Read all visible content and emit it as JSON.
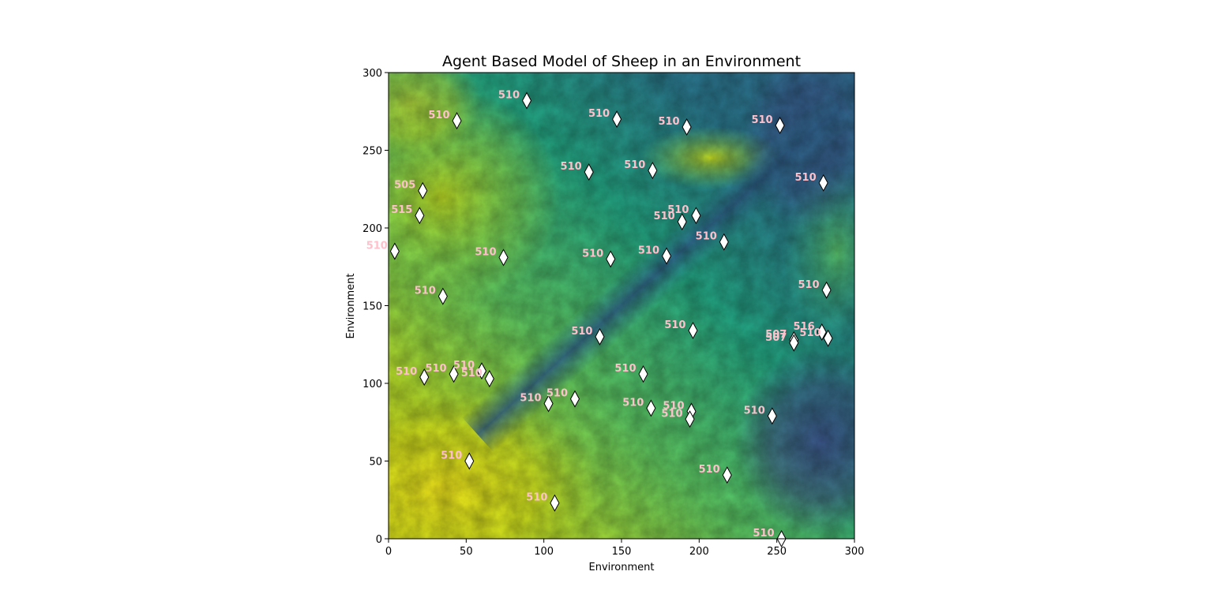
{
  "chart_data": {
    "type": "scatter",
    "title": "Agent Based Model of Sheep in an Environment",
    "xlabel": "Environment",
    "ylabel": "Environment",
    "xlim": [
      0,
      300
    ],
    "ylim": [
      0,
      300
    ],
    "xticks": [
      0,
      50,
      100,
      150,
      200,
      250,
      300
    ],
    "yticks": [
      0,
      50,
      100,
      150,
      200,
      250,
      300
    ],
    "grid": false,
    "background": "environment raster (viridis colormap): yellow-green high values in the lower-left and upper-left, a dark blue-green valley running diagonally from upper-left toward lower-right",
    "colors": {
      "label": "#ffc0cb",
      "marker_fill": "#ffffff",
      "marker_edge": "#000000",
      "high": "#e6e41e",
      "mid": "#21918c",
      "low": "#3e4a89"
    },
    "points": [
      {
        "x": 89,
        "y": 282,
        "label": "510"
      },
      {
        "x": 44,
        "y": 269,
        "label": "510"
      },
      {
        "x": 147,
        "y": 270,
        "label": "510"
      },
      {
        "x": 192,
        "y": 265,
        "label": "510"
      },
      {
        "x": 252,
        "y": 266,
        "label": "510"
      },
      {
        "x": 129,
        "y": 236,
        "label": "510"
      },
      {
        "x": 170,
        "y": 237,
        "label": "510"
      },
      {
        "x": 280,
        "y": 229,
        "label": "510"
      },
      {
        "x": 22,
        "y": 224,
        "label": "505"
      },
      {
        "x": 20,
        "y": 208,
        "label": "515"
      },
      {
        "x": 198,
        "y": 208,
        "label": "510"
      },
      {
        "x": 189,
        "y": 204,
        "label": "510"
      },
      {
        "x": 216,
        "y": 191,
        "label": "510"
      },
      {
        "x": 4,
        "y": 185,
        "label": "510"
      },
      {
        "x": 74,
        "y": 181,
        "label": "510"
      },
      {
        "x": 143,
        "y": 180,
        "label": "510"
      },
      {
        "x": 179,
        "y": 182,
        "label": "510"
      },
      {
        "x": 282,
        "y": 160,
        "label": "510"
      },
      {
        "x": 35,
        "y": 156,
        "label": "510"
      },
      {
        "x": 196,
        "y": 134,
        "label": "510"
      },
      {
        "x": 136,
        "y": 130,
        "label": "510"
      },
      {
        "x": 261,
        "y": 128,
        "label": "507"
      },
      {
        "x": 261,
        "y": 126,
        "label": "507"
      },
      {
        "x": 279,
        "y": 133,
        "label": "516"
      },
      {
        "x": 283,
        "y": 129,
        "label": "510"
      },
      {
        "x": 23,
        "y": 104,
        "label": "510"
      },
      {
        "x": 42,
        "y": 106,
        "label": "510"
      },
      {
        "x": 60,
        "y": 108,
        "label": "510"
      },
      {
        "x": 65,
        "y": 103,
        "label": "510"
      },
      {
        "x": 164,
        "y": 106,
        "label": "510"
      },
      {
        "x": 103,
        "y": 87,
        "label": "510"
      },
      {
        "x": 120,
        "y": 90,
        "label": "510"
      },
      {
        "x": 169,
        "y": 84,
        "label": "510"
      },
      {
        "x": 195,
        "y": 82,
        "label": "510"
      },
      {
        "x": 194,
        "y": 77,
        "label": "510"
      },
      {
        "x": 247,
        "y": 79,
        "label": "510"
      },
      {
        "x": 52,
        "y": 50,
        "label": "510"
      },
      {
        "x": 218,
        "y": 41,
        "label": "510"
      },
      {
        "x": 107,
        "y": 23,
        "label": "510"
      },
      {
        "x": 253,
        "y": 0,
        "label": "510"
      }
    ]
  }
}
